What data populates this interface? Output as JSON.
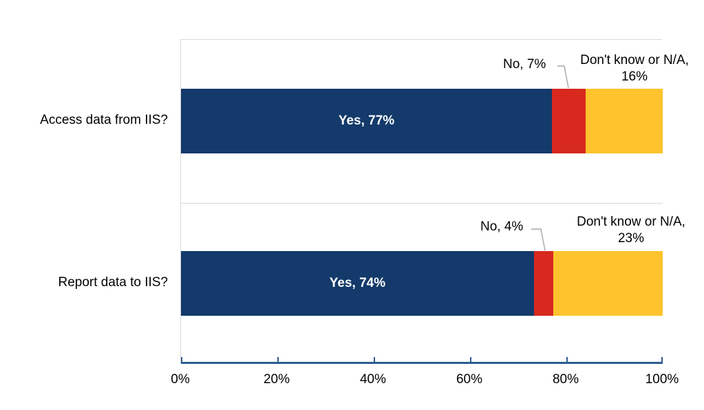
{
  "chart_data": {
    "type": "bar",
    "orientation": "horizontal_stacked",
    "title": "",
    "categories": [
      "Access data from IIS?",
      "Report data to IIS?"
    ],
    "series": [
      {
        "name": "Yes",
        "color": "#133a6a",
        "values": [
          77,
          74
        ]
      },
      {
        "name": "No",
        "color": "#d7291d",
        "values": [
          7,
          4
        ]
      },
      {
        "name": "Don't know or N/A",
        "color": "#ffc42d",
        "values": [
          16,
          23
        ]
      }
    ],
    "xlim": [
      0,
      100
    ],
    "x_tick_labels": [
      "0%",
      "20%",
      "40%",
      "60%",
      "80%",
      "100%"
    ],
    "grid": "category band dividers only",
    "legend": "none (labels drawn on/near segments)"
  },
  "labels": {
    "rows": [
      {
        "category": "Access data from IIS?",
        "yes_label": "Yes, 77%",
        "no_label": "No, 7%",
        "dk_line1": "Don't know or N/A,",
        "dk_line2": "16%"
      },
      {
        "category": "Report data to IIS?",
        "yes_label": "Yes, 74%",
        "no_label": "No, 4%",
        "dk_line1": "Don't know or N/A,",
        "dk_line2": "23%"
      }
    ]
  },
  "colors": {
    "yes": "#133a6a",
    "no": "#d7291d",
    "dontknow": "#ffc42d",
    "axis_line": "#2e5c8f",
    "plot_border": "#d9d9d9",
    "leader_line": "#a6a6a6",
    "text": "#000000",
    "bar_value_text": "#ffffff"
  }
}
